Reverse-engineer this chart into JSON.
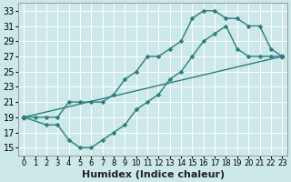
{
  "xlabel": "Humidex (Indice chaleur)",
  "bg_color": "#cce8e8",
  "grid_color": "#ffffff",
  "line_color": "#2d7d7d",
  "markersize": 2.5,
  "linewidth": 1.0,
  "xlim": [
    -0.5,
    23.5
  ],
  "ylim": [
    14,
    34
  ],
  "xticks": [
    0,
    1,
    2,
    3,
    4,
    5,
    6,
    7,
    8,
    9,
    10,
    11,
    12,
    13,
    14,
    15,
    16,
    17,
    18,
    19,
    20,
    21,
    22,
    23
  ],
  "yticks": [
    15,
    17,
    19,
    21,
    23,
    25,
    27,
    29,
    31,
    33
  ],
  "curve1_x": [
    0,
    1,
    2,
    3,
    4,
    5,
    6,
    7,
    8,
    9,
    10,
    11,
    12,
    13,
    14,
    15,
    16,
    17,
    18,
    19,
    20,
    21,
    22,
    23
  ],
  "curve1_y": [
    19,
    19,
    19,
    19,
    21,
    21,
    21,
    21,
    22,
    24,
    25,
    27,
    27,
    28,
    29,
    32,
    33,
    33,
    32,
    32,
    31,
    31,
    28,
    27
  ],
  "curve2_x": [
    0,
    2,
    3,
    4,
    5,
    6,
    7,
    8,
    9,
    10,
    11,
    12,
    13,
    14,
    15,
    16,
    17,
    18,
    19,
    20,
    21,
    22,
    23
  ],
  "curve2_y": [
    19,
    18,
    18,
    16,
    15,
    15,
    16,
    17,
    18,
    20,
    21,
    22,
    24,
    25,
    27,
    29,
    30,
    31,
    28,
    27,
    27,
    27,
    27
  ],
  "curve3_x": [
    0,
    23
  ],
  "curve3_y": [
    19,
    27
  ],
  "font_size_xlabel": 8,
  "font_size_tick_x": 6,
  "font_size_tick_y": 7
}
